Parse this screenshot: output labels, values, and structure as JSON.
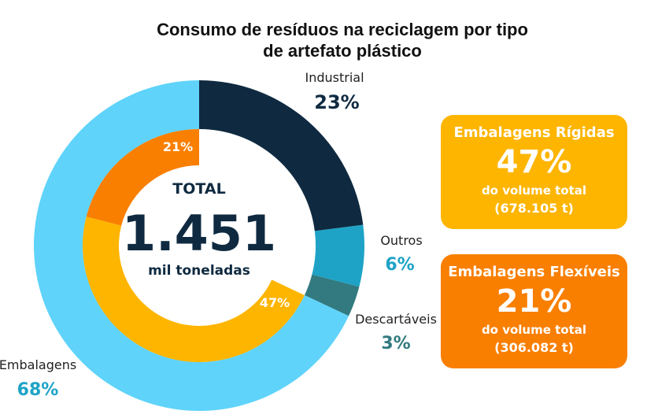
{
  "title": {
    "line1": "Consumo de resíduos na reciclagem por tipo",
    "line2": "de artefato plástico"
  },
  "center": {
    "label": "TOTAL",
    "value": "1.451",
    "unit": "mil toneladas"
  },
  "chart_data": {
    "type": "pie",
    "title": "Consumo de resíduos na reciclagem por tipo de artefato plástico",
    "outer_ring": {
      "categories": [
        "Industrial",
        "Outros",
        "Descartáveis",
        "Embalagens"
      ],
      "values": [
        23,
        6,
        3,
        68
      ],
      "labels": [
        "23%",
        "6%",
        "3%",
        "68%"
      ],
      "colors": [
        "#0f2a40",
        "#1ea3c6",
        "#327a80",
        "#5fd3fa"
      ]
    },
    "inner_ring": {
      "categories": [
        "Embalagens Rígidas",
        "Embalagens Flexíveis"
      ],
      "values": [
        47,
        21
      ],
      "labels": [
        "47%",
        "21%"
      ],
      "colors": [
        "#fdb500",
        "#f97f01"
      ]
    }
  },
  "cards": [
    {
      "title": "Embalagens Rígidas",
      "percent": "47%",
      "subtitle": "do volume total",
      "volume": "(678.105 t)",
      "color": "#fdb500"
    },
    {
      "title": "Embalagens Flexíveis",
      "percent": "21%",
      "subtitle": "do volume total",
      "volume": "(306.082 t)",
      "color": "#f97f01"
    }
  ]
}
